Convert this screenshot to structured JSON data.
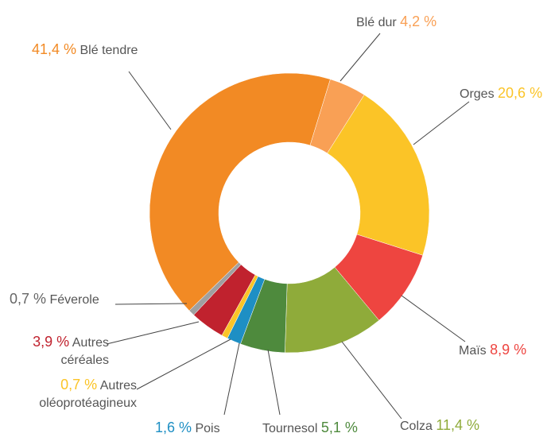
{
  "chart_data": {
    "type": "donut",
    "categories": [
      "Blé tendre",
      "Blé dur",
      "Orges",
      "Maïs",
      "Colza",
      "Tournesol",
      "Pois",
      "Autres oléoprotéagineux",
      "Autres céréales",
      "Féverole"
    ],
    "values": [
      41.4,
      4.2,
      20.6,
      8.9,
      11.4,
      5.1,
      1.6,
      0.7,
      3.9,
      0.7
    ],
    "value_labels": [
      "41,4 %",
      "4,2 %",
      "20,6 %",
      "8,9 %",
      "11,4 %",
      "5,1 %",
      "1,6 %",
      "0,7 %",
      "3,9 %",
      "0,7 %"
    ],
    "colors": [
      "#f28a24",
      "#f9a055",
      "#fbc427",
      "#ee4540",
      "#8fab3a",
      "#4e8a3d",
      "#1e8fc4",
      "#fbc427",
      "#c0222e",
      "#a0a0a0"
    ]
  }
}
